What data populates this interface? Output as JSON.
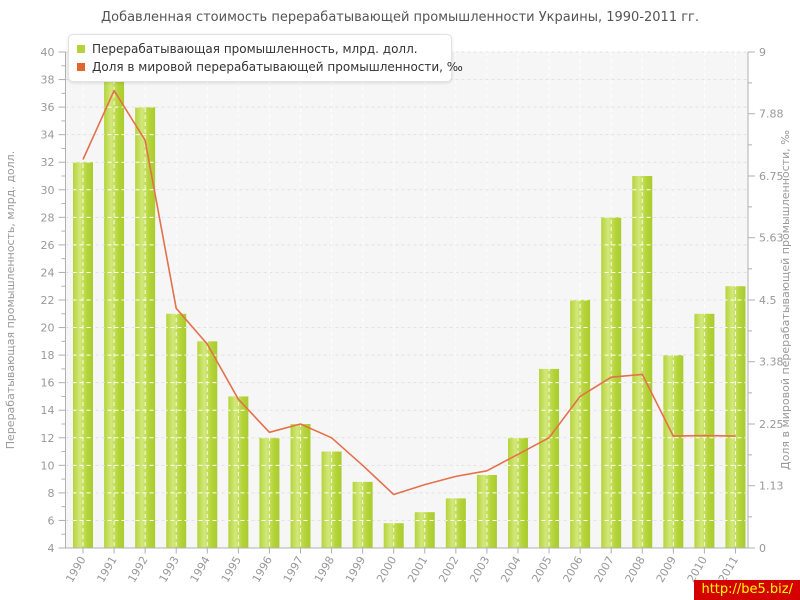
{
  "chart_data": {
    "type": "bar",
    "title": "Добавленная стоимость перерабатывающей промышленности Украины, 1990-2011 гг.",
    "categories": [
      1990,
      1991,
      1992,
      1993,
      1994,
      1995,
      1996,
      1997,
      1998,
      1999,
      2000,
      2001,
      2002,
      2003,
      2004,
      2005,
      2006,
      2007,
      2008,
      2009,
      2010,
      2011
    ],
    "series": [
      {
        "name": "Перерабатывающая промышленность, млрд. долл.",
        "type": "bar",
        "axis": "left",
        "color": "#b5d43a",
        "color_light": "#d2e87c",
        "color_dark": "#a9cc2e",
        "values": [
          32,
          38.5,
          36,
          21,
          19,
          15,
          12,
          13,
          11,
          8.8,
          5.8,
          6.6,
          7.6,
          9.3,
          12,
          17,
          22,
          28,
          31,
          18,
          21,
          23
        ]
      },
      {
        "name": "Доля в мировой перерабатывающей промышленности, ‰",
        "type": "line",
        "axis": "right",
        "color": "#e2662c",
        "line_color": "#e5704c",
        "values": [
          7.05,
          8.3,
          7.4,
          4.35,
          3.7,
          2.7,
          2.1,
          2.25,
          2.0,
          1.5,
          0.97,
          1.15,
          1.3,
          1.4,
          1.7,
          2.0,
          2.75,
          3.1,
          3.15,
          2.03,
          2.04,
          2.03
        ]
      }
    ],
    "left_axis": {
      "label": "Перерабатывающая промышленность, млрд. долл.",
      "min": 4,
      "max": 40,
      "tick_step": 2
    },
    "right_axis": {
      "label": "Доля в мировой перерабатывающей промышленности, ‰",
      "min": 0,
      "max": 9,
      "ticks": [
        "0",
        "1.13",
        "2.25",
        "3.38",
        "4.5",
        "5.63",
        "6.75",
        "7.88",
        "9"
      ]
    },
    "grid": {
      "horizontal": true,
      "vertical": true
    },
    "legend_position": "top-left",
    "plot_bg": "#f6f6f6",
    "axis_color": "#b0b0b0",
    "tick_text_color": "#999999",
    "title_color": "#555555"
  },
  "footer": {
    "url": "http://be5.biz/",
    "bg": "#d40000",
    "text_color": "#ffff00"
  }
}
